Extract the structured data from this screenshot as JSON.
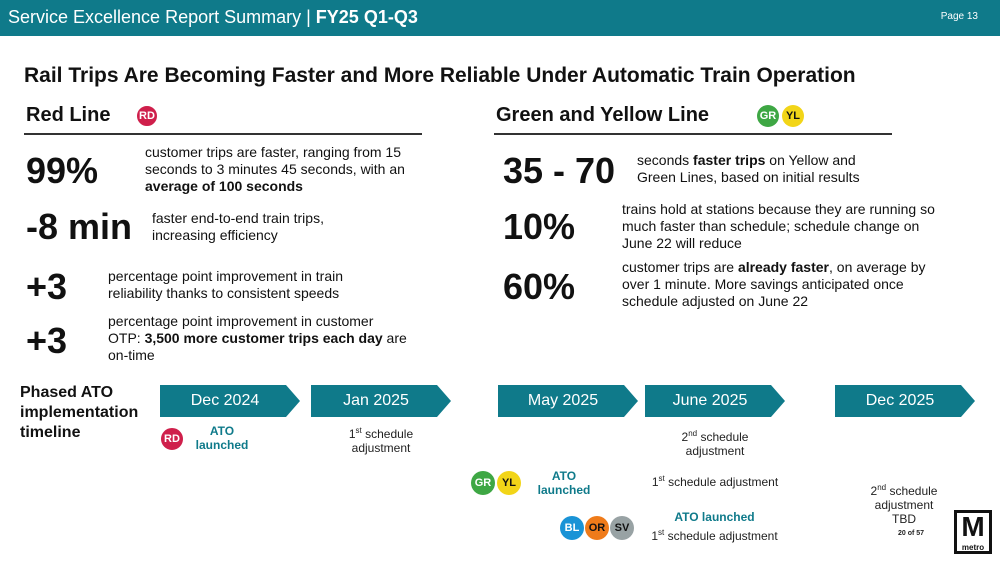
{
  "header": {
    "title_prefix": "Service Excellence Report Summary | ",
    "title_bold": "FY25 Q1-Q3",
    "page": "Page 13"
  },
  "main_title": "Rail Trips Are Becoming Faster and More Reliable Under Automatic Train Operation",
  "red": {
    "heading": "Red Line",
    "badge": "RD",
    "stats": [
      {
        "value": "99%",
        "text": "customer trips are faster, ranging from 15 seconds to 3 minutes 45 seconds, with an ",
        "bold": "average of 100 seconds",
        "tail": ""
      },
      {
        "value": "-8 min",
        "text": "faster end-to-end train trips, increasing efficiency",
        "bold": "",
        "tail": ""
      },
      {
        "value": "+3",
        "text": "percentage point improvement in train reliability thanks to consistent speeds",
        "bold": "",
        "tail": ""
      },
      {
        "value": "+3",
        "text": "percentage point improvement in customer OTP: ",
        "bold": "3,500 more customer trips each day",
        "tail": " are on-time"
      }
    ]
  },
  "green": {
    "heading": "Green and Yellow Line",
    "badges": [
      "GR",
      "YL"
    ],
    "stats": [
      {
        "value": "35 - 70",
        "text": "seconds ",
        "bold": "faster trips",
        "tail": " on Yellow and Green Lines, based on initial results"
      },
      {
        "value": "10%",
        "text": "trains hold at stations because they are running so much faster than schedule; schedule change on June 22 will reduce",
        "bold": "",
        "tail": ""
      },
      {
        "value": "60%",
        "text": "customer trips are ",
        "bold": "already faster",
        "tail": ", on average by over 1 minute. More savings anticipated once schedule adjusted on June 22"
      }
    ]
  },
  "timeline": {
    "label_1": "Phased ATO",
    "label_2": "implementation",
    "label_3": "timeline",
    "steps": [
      "Dec 2024",
      "Jan 2025",
      "May 2025",
      "June 2025",
      "Dec 2025"
    ],
    "ato": "ATO",
    "launched": "launched",
    "ato_launched": "ATO launched",
    "first": "1",
    "second": "2",
    "st": "st",
    "nd": "nd",
    "schedule": " schedule",
    "adjustment": "adjustment",
    "schedule_adjustment": " schedule adjustment",
    "tbd": "TBD",
    "badges_rd": "RD",
    "badges_gr": "GR",
    "badges_yl": "YL",
    "badges_bl": "BL",
    "badges_or": "OR",
    "badges_sv": "SV"
  },
  "footer": {
    "slide": "20 of 57",
    "logo_letter": "M",
    "logo_word": "metro"
  },
  "colors": {
    "header": "#0f7a8a",
    "red_line": "#cf1f4b",
    "green_line": "#3ea744",
    "yellow_line": "#f2d518",
    "blue_line": "#1a93d6",
    "orange_line": "#ef7b1a",
    "silver_line": "#98a2a4"
  }
}
